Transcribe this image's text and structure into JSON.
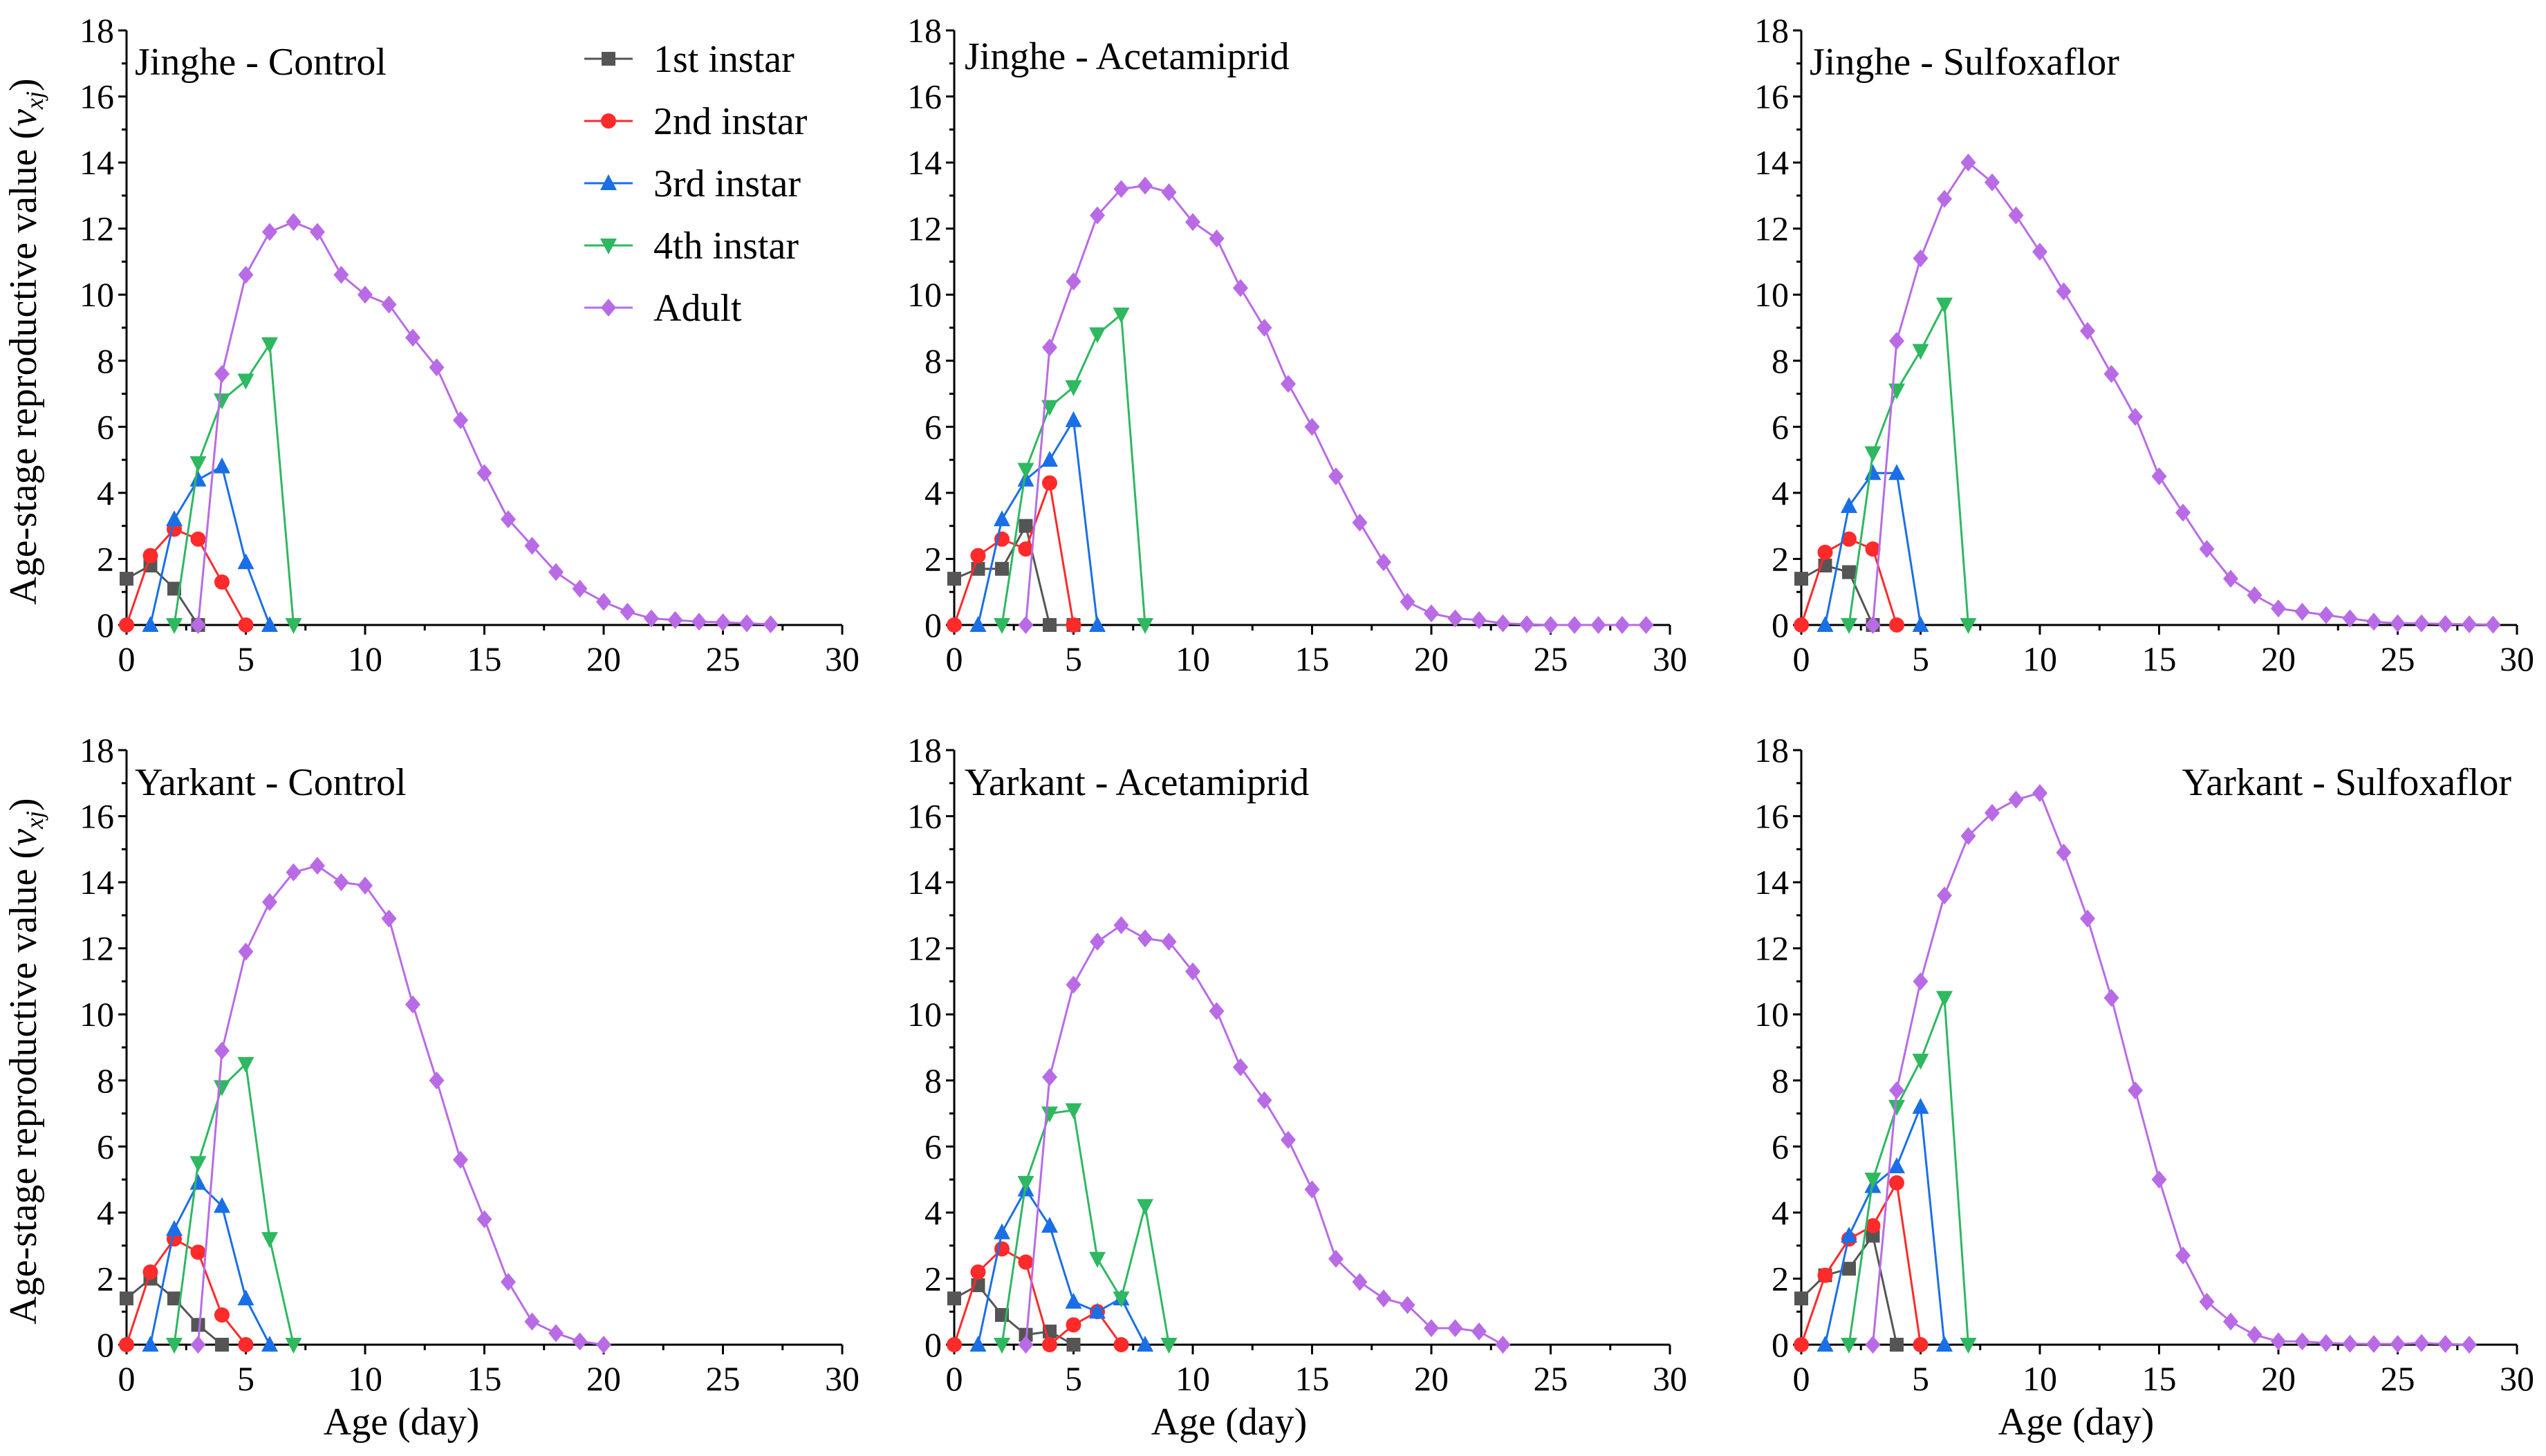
{
  "figure": {
    "y_axis_title": "Age-stage reproductive value",
    "y_axis_symbol": "v",
    "y_axis_subscript": "xj",
    "x_axis_title": "Age (day)"
  },
  "legend": [
    {
      "name": "1st instar",
      "color": "#555555",
      "marker": "square"
    },
    {
      "name": "2nd instar",
      "color": "#ff2a2a",
      "marker": "circle"
    },
    {
      "name": "3rd instar",
      "color": "#1a6fe6",
      "marker": "triangle-up"
    },
    {
      "name": "4th instar",
      "color": "#2eb860",
      "marker": "triangle-down"
    },
    {
      "name": "Adult",
      "color": "#b96be6",
      "marker": "diamond"
    }
  ],
  "chart_data": [
    {
      "type": "line",
      "title": "Jinghe - Control",
      "xlabel": "Age (day)",
      "ylabel": "Age-stage reproductive value (vxj)",
      "xlim": [
        0,
        30
      ],
      "ylim": [
        0,
        18
      ],
      "xticks": [
        0,
        5,
        10,
        15,
        20,
        25,
        30
      ],
      "yticks": [
        0,
        2,
        4,
        6,
        8,
        10,
        12,
        14,
        16,
        18
      ],
      "series": [
        {
          "name": "1st instar",
          "x": [
            0,
            1,
            2,
            3
          ],
          "y": [
            1.4,
            1.8,
            1.1,
            0
          ]
        },
        {
          "name": "2nd instar",
          "x": [
            0,
            1,
            2,
            3,
            4,
            5
          ],
          "y": [
            0,
            2.1,
            2.9,
            2.6,
            1.3,
            0
          ]
        },
        {
          "name": "3rd instar",
          "x": [
            1,
            2,
            3,
            4,
            5,
            6
          ],
          "y": [
            0,
            3.2,
            4.4,
            4.8,
            1.9,
            0
          ]
        },
        {
          "name": "4th instar",
          "x": [
            2,
            3,
            4,
            5,
            6,
            7
          ],
          "y": [
            0,
            4.9,
            6.8,
            7.4,
            8.5,
            0
          ]
        },
        {
          "name": "Adult",
          "x": [
            3,
            4,
            5,
            6,
            7,
            8,
            9,
            10,
            11,
            12,
            13,
            14,
            15,
            16,
            17,
            18,
            19,
            20,
            21,
            22,
            23,
            24,
            25,
            26,
            27
          ],
          "y": [
            0,
            7.6,
            10.6,
            11.9,
            12.2,
            11.9,
            10.6,
            10.0,
            9.7,
            8.7,
            7.8,
            6.2,
            4.6,
            3.2,
            2.4,
            1.6,
            1.1,
            0.7,
            0.4,
            0.2,
            0.15,
            0.1,
            0.08,
            0.05,
            0.02
          ]
        }
      ]
    },
    {
      "type": "line",
      "title": "Jinghe - Acetamiprid",
      "xlabel": "Age (day)",
      "ylabel": "",
      "xlim": [
        0,
        30
      ],
      "ylim": [
        0,
        18
      ],
      "xticks": [
        0,
        5,
        10,
        15,
        20,
        25,
        30
      ],
      "yticks": [
        0,
        2,
        4,
        6,
        8,
        10,
        12,
        14,
        16,
        18
      ],
      "series": [
        {
          "name": "1st instar",
          "x": [
            0,
            1,
            2,
            3,
            4,
            5
          ],
          "y": [
            1.4,
            1.7,
            1.7,
            3.0,
            0,
            0
          ]
        },
        {
          "name": "2nd instar",
          "x": [
            0,
            1,
            2,
            3,
            4,
            5
          ],
          "y": [
            0,
            2.1,
            2.6,
            2.3,
            4.3,
            0
          ]
        },
        {
          "name": "3rd instar",
          "x": [
            1,
            2,
            3,
            4,
            5,
            6
          ],
          "y": [
            0,
            3.2,
            4.4,
            5.0,
            6.2,
            0
          ]
        },
        {
          "name": "4th instar",
          "x": [
            2,
            3,
            4,
            5,
            6,
            7,
            8
          ],
          "y": [
            0,
            4.7,
            6.6,
            7.2,
            8.8,
            9.4,
            0
          ]
        },
        {
          "name": "Adult",
          "x": [
            3,
            4,
            5,
            6,
            7,
            8,
            9,
            10,
            11,
            12,
            13,
            14,
            15,
            16,
            17,
            18,
            19,
            20,
            21,
            22,
            23,
            24,
            25,
            26,
            27,
            28,
            29
          ],
          "y": [
            0,
            8.4,
            10.4,
            12.4,
            13.2,
            13.3,
            13.1,
            12.2,
            11.7,
            10.2,
            9.0,
            7.3,
            6.0,
            4.5,
            3.1,
            1.9,
            0.7,
            0.35,
            0.2,
            0.15,
            0.05,
            0.02,
            0,
            0,
            0,
            0,
            0
          ]
        }
      ]
    },
    {
      "type": "line",
      "title": "Jinghe - Sulfoxaflor",
      "xlabel": "Age (day)",
      "ylabel": "",
      "xlim": [
        0,
        30
      ],
      "ylim": [
        0,
        18
      ],
      "xticks": [
        0,
        5,
        10,
        15,
        20,
        25,
        30
      ],
      "yticks": [
        0,
        2,
        4,
        6,
        8,
        10,
        12,
        14,
        16,
        18
      ],
      "series": [
        {
          "name": "1st instar",
          "x": [
            0,
            1,
            2,
            3
          ],
          "y": [
            1.4,
            1.8,
            1.6,
            0
          ]
        },
        {
          "name": "2nd instar",
          "x": [
            0,
            1,
            2,
            3,
            4
          ],
          "y": [
            0,
            2.2,
            2.6,
            2.3,
            0
          ]
        },
        {
          "name": "3rd instar",
          "x": [
            1,
            2,
            3,
            4,
            5
          ],
          "y": [
            0,
            3.6,
            4.6,
            4.6,
            0
          ]
        },
        {
          "name": "4th instar",
          "x": [
            2,
            3,
            4,
            5,
            6,
            7
          ],
          "y": [
            0,
            5.2,
            7.1,
            8.3,
            9.7,
            0
          ]
        },
        {
          "name": "Adult",
          "x": [
            3,
            4,
            5,
            6,
            7,
            8,
            9,
            10,
            11,
            12,
            13,
            14,
            15,
            16,
            17,
            18,
            19,
            20,
            21,
            22,
            23,
            24,
            25,
            26,
            27,
            28,
            29
          ],
          "y": [
            0,
            8.6,
            11.1,
            12.9,
            14.0,
            13.4,
            12.4,
            11.3,
            10.1,
            8.9,
            7.6,
            6.3,
            4.5,
            3.4,
            2.3,
            1.4,
            0.9,
            0.5,
            0.4,
            0.3,
            0.2,
            0.1,
            0.05,
            0.05,
            0.03,
            0.02,
            0.01
          ]
        }
      ]
    },
    {
      "type": "line",
      "title": "Yarkant - Control",
      "xlabel": "Age (day)",
      "ylabel": "Age-stage reproductive value (vxj)",
      "xlim": [
        0,
        30
      ],
      "ylim": [
        0,
        18
      ],
      "xticks": [
        0,
        5,
        10,
        15,
        20,
        25,
        30
      ],
      "yticks": [
        0,
        2,
        4,
        6,
        8,
        10,
        12,
        14,
        16,
        18
      ],
      "series": [
        {
          "name": "1st instar",
          "x": [
            0,
            1,
            2,
            3,
            4
          ],
          "y": [
            1.4,
            2.0,
            1.4,
            0.6,
            0
          ]
        },
        {
          "name": "2nd instar",
          "x": [
            0,
            1,
            2,
            3,
            4,
            5
          ],
          "y": [
            0,
            2.2,
            3.2,
            2.8,
            0.9,
            0
          ]
        },
        {
          "name": "3rd instar",
          "x": [
            1,
            2,
            3,
            4,
            5,
            6
          ],
          "y": [
            0,
            3.5,
            4.9,
            4.2,
            1.4,
            0
          ]
        },
        {
          "name": "4th instar",
          "x": [
            2,
            3,
            4,
            5,
            6,
            7
          ],
          "y": [
            0,
            5.5,
            7.8,
            8.5,
            3.2,
            0
          ]
        },
        {
          "name": "Adult",
          "x": [
            3,
            4,
            5,
            6,
            7,
            8,
            9,
            10,
            11,
            12,
            13,
            14,
            15,
            16,
            17,
            18,
            19,
            20
          ],
          "y": [
            0,
            8.9,
            11.9,
            13.4,
            14.3,
            14.5,
            14.0,
            13.9,
            12.9,
            10.3,
            8.0,
            5.6,
            3.8,
            1.9,
            0.7,
            0.35,
            0.1,
            0
          ]
        }
      ]
    },
    {
      "type": "line",
      "title": "Yarkant - Acetamiprid",
      "xlabel": "Age (day)",
      "ylabel": "",
      "xlim": [
        0,
        30
      ],
      "ylim": [
        0,
        18
      ],
      "xticks": [
        0,
        5,
        10,
        15,
        20,
        25,
        30
      ],
      "yticks": [
        0,
        2,
        4,
        6,
        8,
        10,
        12,
        14,
        16,
        18
      ],
      "series": [
        {
          "name": "1st instar",
          "x": [
            0,
            1,
            2,
            3,
            4,
            5
          ],
          "y": [
            1.4,
            1.8,
            0.9,
            0.3,
            0.4,
            0
          ]
        },
        {
          "name": "2nd instar",
          "x": [
            0,
            1,
            2,
            3,
            4,
            5,
            6,
            7
          ],
          "y": [
            0,
            2.2,
            2.9,
            2.5,
            0,
            0.6,
            1.0,
            0
          ]
        },
        {
          "name": "3rd instar",
          "x": [
            1,
            2,
            3,
            4,
            5,
            6,
            7,
            8
          ],
          "y": [
            0,
            3.4,
            4.7,
            3.6,
            1.3,
            1.0,
            1.4,
            0
          ]
        },
        {
          "name": "4th instar",
          "x": [
            2,
            3,
            4,
            5,
            6,
            7,
            8,
            9
          ],
          "y": [
            0,
            4.9,
            7.0,
            7.1,
            2.6,
            1.4,
            4.2,
            0
          ]
        },
        {
          "name": "Adult",
          "x": [
            3,
            4,
            5,
            6,
            7,
            8,
            9,
            10,
            11,
            12,
            13,
            14,
            15,
            16,
            17,
            18,
            19,
            20,
            21,
            22,
            23
          ],
          "y": [
            0,
            8.1,
            10.9,
            12.2,
            12.7,
            12.3,
            12.2,
            11.3,
            10.1,
            8.4,
            7.4,
            6.2,
            4.7,
            2.6,
            1.9,
            1.4,
            1.2,
            0.5,
            0.5,
            0.4,
            0
          ]
        }
      ]
    },
    {
      "type": "line",
      "title": "Yarkant - Sulfoxaflor",
      "xlabel": "Age (day)",
      "ylabel": "",
      "xlim": [
        0,
        30
      ],
      "ylim": [
        0,
        18
      ],
      "xticks": [
        0,
        5,
        10,
        15,
        20,
        25,
        30
      ],
      "yticks": [
        0,
        2,
        4,
        6,
        8,
        10,
        12,
        14,
        16,
        18
      ],
      "series": [
        {
          "name": "1st instar",
          "x": [
            0,
            1,
            2,
            3,
            4
          ],
          "y": [
            1.4,
            2.1,
            2.3,
            3.3,
            0
          ]
        },
        {
          "name": "2nd instar",
          "x": [
            0,
            1,
            2,
            3,
            4,
            5
          ],
          "y": [
            0,
            2.1,
            3.2,
            3.6,
            4.9,
            0
          ]
        },
        {
          "name": "3rd instar",
          "x": [
            1,
            2,
            3,
            4,
            5,
            6
          ],
          "y": [
            0,
            3.3,
            4.8,
            5.4,
            7.2,
            0
          ]
        },
        {
          "name": "4th instar",
          "x": [
            2,
            3,
            4,
            5,
            6,
            7
          ],
          "y": [
            0,
            5.0,
            7.2,
            8.6,
            10.5,
            0
          ]
        },
        {
          "name": "Adult",
          "x": [
            3,
            4,
            5,
            6,
            7,
            8,
            9,
            10,
            11,
            12,
            13,
            14,
            15,
            16,
            17,
            18,
            19,
            20,
            21,
            22,
            23,
            24,
            25,
            26,
            27,
            28
          ],
          "y": [
            0,
            7.7,
            11.0,
            13.6,
            15.4,
            16.1,
            16.5,
            16.7,
            14.9,
            12.9,
            10.5,
            7.7,
            5.0,
            2.7,
            1.3,
            0.7,
            0.3,
            0.1,
            0.1,
            0.05,
            0.03,
            0.02,
            0.02,
            0.05,
            0.02,
            0
          ]
        }
      ]
    }
  ]
}
